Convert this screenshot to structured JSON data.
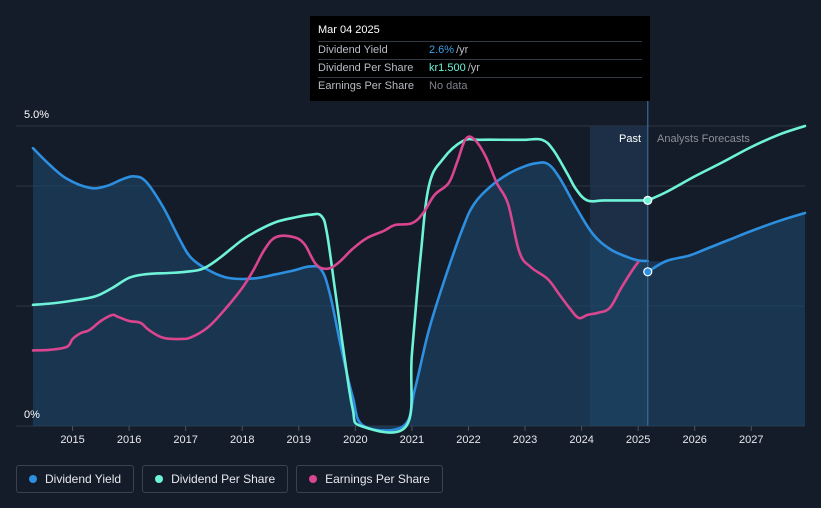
{
  "tooltip": {
    "date": "Mar 04 2025",
    "rows": [
      {
        "label": "Dividend Yield",
        "value": "2.6%",
        "unit": "/yr",
        "color": "#3ba0e8"
      },
      {
        "label": "Dividend Per Share",
        "value": "kr1.500",
        "unit": "/yr",
        "color": "#6ff3d8"
      },
      {
        "label": "Earnings Per Share",
        "value": "No data",
        "unit": "",
        "color": "#7d838c"
      }
    ]
  },
  "legend": [
    {
      "label": "Dividend Yield",
      "color": "#2d8fe0"
    },
    {
      "label": "Dividend Per Share",
      "color": "#6ff3d8"
    },
    {
      "label": "Earnings Per Share",
      "color": "#d9468f"
    }
  ],
  "chart_data": {
    "type": "line",
    "y_tick_labels": [
      "5.0%",
      "0%"
    ],
    "ylim": [
      0,
      5.0
    ],
    "xlim": [
      2014.0,
      2027.95
    ],
    "x_ticks": [
      2015,
      2016,
      2017,
      2018,
      2019,
      2020,
      2021,
      2022,
      2023,
      2024,
      2025,
      2026,
      2027
    ],
    "past_label": "Past",
    "forecast_label": "Analysts Forecasts",
    "past_forecast_split": 2025.17,
    "forecast_band_start": 2024.15,
    "grid": true,
    "series": [
      {
        "name": "Dividend Yield",
        "color": "#2d8fe0",
        "fill": true,
        "points": [
          [
            2014.3,
            4.63
          ],
          [
            2014.6,
            4.35
          ],
          [
            2014.9,
            4.12
          ],
          [
            2015.3,
            3.97
          ],
          [
            2015.6,
            4.0
          ],
          [
            2015.9,
            4.12
          ],
          [
            2016.1,
            4.16
          ],
          [
            2016.3,
            4.07
          ],
          [
            2016.6,
            3.65
          ],
          [
            2016.9,
            3.1
          ],
          [
            2017.1,
            2.8
          ],
          [
            2017.4,
            2.6
          ],
          [
            2017.7,
            2.48
          ],
          [
            2018.0,
            2.45
          ],
          [
            2018.3,
            2.47
          ],
          [
            2018.6,
            2.53
          ],
          [
            2018.9,
            2.59
          ],
          [
            2019.2,
            2.66
          ],
          [
            2019.4,
            2.6
          ],
          [
            2019.55,
            2.2
          ],
          [
            2019.75,
            1.3
          ],
          [
            2019.95,
            0.5
          ],
          [
            2020.15,
            0.0
          ],
          [
            2020.85,
            0.0
          ],
          [
            2021.05,
            0.6
          ],
          [
            2021.3,
            1.6
          ],
          [
            2021.6,
            2.5
          ],
          [
            2021.9,
            3.3
          ],
          [
            2022.1,
            3.7
          ],
          [
            2022.4,
            4.0
          ],
          [
            2022.7,
            4.2
          ],
          [
            2023.0,
            4.33
          ],
          [
            2023.2,
            4.38
          ],
          [
            2023.4,
            4.37
          ],
          [
            2023.6,
            4.15
          ],
          [
            2023.9,
            3.65
          ],
          [
            2024.2,
            3.2
          ],
          [
            2024.5,
            2.95
          ],
          [
            2024.8,
            2.82
          ],
          [
            2025.0,
            2.76
          ],
          [
            2025.17,
            2.75
          ]
        ],
        "forecast_points": [
          [
            2025.17,
            2.57
          ],
          [
            2025.5,
            2.75
          ],
          [
            2025.9,
            2.84
          ],
          [
            2026.2,
            2.95
          ],
          [
            2026.6,
            3.1
          ],
          [
            2027.0,
            3.25
          ],
          [
            2027.5,
            3.42
          ],
          [
            2027.95,
            3.55
          ]
        ]
      },
      {
        "name": "Dividend Per Share",
        "color": "#6ff3d8",
        "fill": false,
        "points": [
          [
            2014.3,
            2.02
          ],
          [
            2014.7,
            2.05
          ],
          [
            2015.0,
            2.09
          ],
          [
            2015.4,
            2.16
          ],
          [
            2015.7,
            2.3
          ],
          [
            2016.0,
            2.47
          ],
          [
            2016.3,
            2.53
          ],
          [
            2016.7,
            2.55
          ],
          [
            2017.0,
            2.57
          ],
          [
            2017.3,
            2.62
          ],
          [
            2017.6,
            2.8
          ],
          [
            2018.0,
            3.1
          ],
          [
            2018.3,
            3.27
          ],
          [
            2018.6,
            3.4
          ],
          [
            2018.9,
            3.47
          ],
          [
            2019.2,
            3.52
          ],
          [
            2019.4,
            3.5
          ],
          [
            2019.5,
            3.2
          ],
          [
            2019.65,
            2.2
          ],
          [
            2019.8,
            1.2
          ],
          [
            2019.95,
            0.3
          ],
          [
            2020.1,
            0.0
          ],
          [
            2020.9,
            0.0
          ],
          [
            2021.0,
            1.2
          ],
          [
            2021.15,
            2.8
          ],
          [
            2021.3,
            4.0
          ],
          [
            2021.55,
            4.45
          ],
          [
            2021.9,
            4.75
          ],
          [
            2022.2,
            4.77
          ],
          [
            2022.7,
            4.77
          ],
          [
            2023.0,
            4.77
          ],
          [
            2023.3,
            4.77
          ],
          [
            2023.5,
            4.6
          ],
          [
            2023.75,
            4.2
          ],
          [
            2023.9,
            3.95
          ],
          [
            2024.1,
            3.76
          ],
          [
            2024.4,
            3.76
          ],
          [
            2024.8,
            3.76
          ],
          [
            2025.17,
            3.76
          ]
        ],
        "forecast_points": [
          [
            2025.17,
            3.76
          ],
          [
            2025.5,
            3.9
          ],
          [
            2026.0,
            4.16
          ],
          [
            2026.5,
            4.4
          ],
          [
            2027.0,
            4.65
          ],
          [
            2027.5,
            4.86
          ],
          [
            2027.95,
            5.0
          ]
        ]
      },
      {
        "name": "Earnings Per Share",
        "color": "#d9468f",
        "fill": false,
        "points": [
          [
            2014.3,
            1.26
          ],
          [
            2014.6,
            1.27
          ],
          [
            2014.9,
            1.32
          ],
          [
            2015.0,
            1.45
          ],
          [
            2015.15,
            1.55
          ],
          [
            2015.3,
            1.6
          ],
          [
            2015.5,
            1.75
          ],
          [
            2015.7,
            1.85
          ],
          [
            2015.8,
            1.82
          ],
          [
            2016.0,
            1.75
          ],
          [
            2016.2,
            1.72
          ],
          [
            2016.35,
            1.6
          ],
          [
            2016.6,
            1.47
          ],
          [
            2016.9,
            1.45
          ],
          [
            2017.1,
            1.48
          ],
          [
            2017.4,
            1.65
          ],
          [
            2017.7,
            1.95
          ],
          [
            2018.0,
            2.3
          ],
          [
            2018.2,
            2.6
          ],
          [
            2018.4,
            2.95
          ],
          [
            2018.6,
            3.15
          ],
          [
            2018.9,
            3.15
          ],
          [
            2019.1,
            3.03
          ],
          [
            2019.3,
            2.7
          ],
          [
            2019.5,
            2.62
          ],
          [
            2019.7,
            2.72
          ],
          [
            2019.95,
            2.95
          ],
          [
            2020.2,
            3.13
          ],
          [
            2020.5,
            3.25
          ],
          [
            2020.7,
            3.35
          ],
          [
            2021.0,
            3.38
          ],
          [
            2021.2,
            3.55
          ],
          [
            2021.4,
            3.85
          ],
          [
            2021.65,
            4.05
          ],
          [
            2021.8,
            4.4
          ],
          [
            2021.95,
            4.78
          ],
          [
            2022.1,
            4.78
          ],
          [
            2022.3,
            4.5
          ],
          [
            2022.5,
            4.05
          ],
          [
            2022.7,
            3.7
          ],
          [
            2022.9,
            2.9
          ],
          [
            2023.1,
            2.65
          ],
          [
            2023.4,
            2.45
          ],
          [
            2023.6,
            2.2
          ],
          [
            2023.8,
            1.95
          ],
          [
            2023.95,
            1.8
          ],
          [
            2024.1,
            1.85
          ],
          [
            2024.3,
            1.89
          ],
          [
            2024.5,
            1.97
          ],
          [
            2024.7,
            2.3
          ],
          [
            2024.9,
            2.6
          ],
          [
            2025.0,
            2.73
          ]
        ]
      }
    ]
  }
}
